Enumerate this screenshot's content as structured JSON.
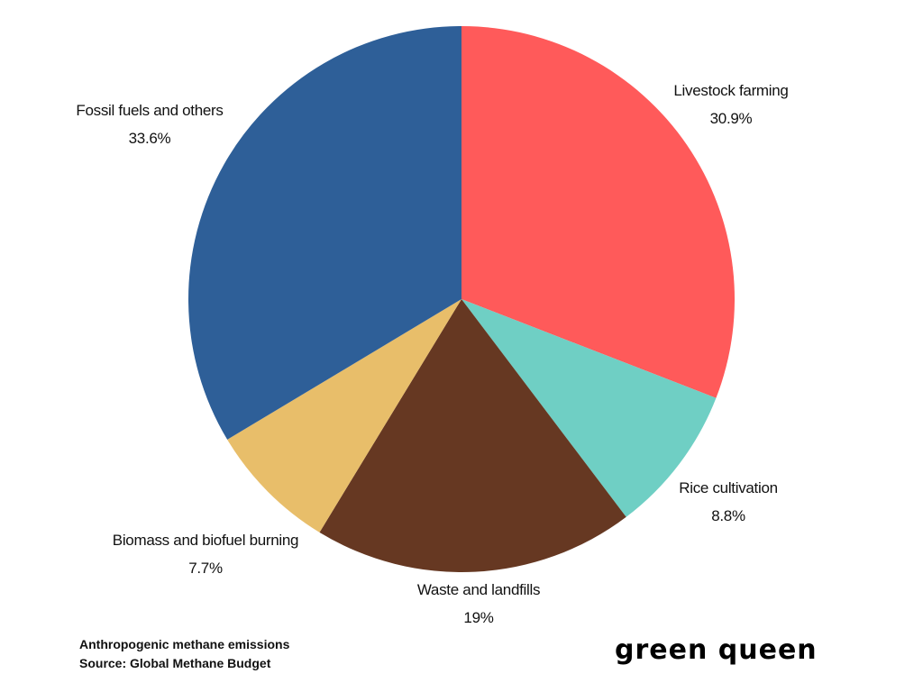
{
  "chart_data": {
    "type": "pie",
    "start": "top",
    "direction": "clockwise",
    "slices": [
      {
        "label": "Livestock farming",
        "value": 30.9,
        "display": "30.9%",
        "color": "#FF5A5A"
      },
      {
        "label": "Rice cultivation",
        "value": 8.8,
        "display": "8.8%",
        "color": "#6FCFC4"
      },
      {
        "label": "Waste and landfills",
        "value": 19,
        "display": "19%",
        "color": "#663822"
      },
      {
        "label": "Biomass and biofuel burning",
        "value": 7.7,
        "display": "7.7%",
        "color": "#E8BE6A"
      },
      {
        "label": "Fossil fuels and others",
        "value": 33.6,
        "display": "33.6%",
        "color": "#2E5F98"
      }
    ],
    "caption": "Anthropogenic methane emissions",
    "source": "Source: Global Methane Budget"
  },
  "logo": "green queen"
}
